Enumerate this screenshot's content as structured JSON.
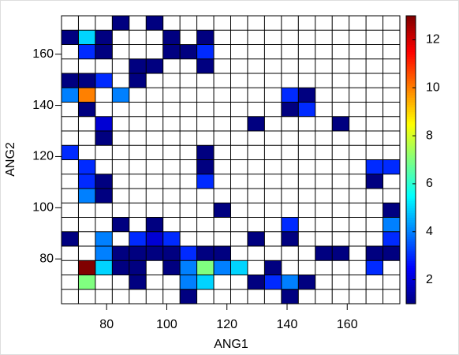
{
  "chart_data": {
    "type": "heatmap",
    "x_label": "ANG1",
    "y_label": "ANG2",
    "xbins": [
      65,
      70.625,
      76.25,
      81.875,
      87.5,
      93.125,
      98.75,
      104.375,
      110,
      115.625,
      121.25,
      126.875,
      132.5,
      138.125,
      143.75,
      149.375,
      155,
      160.625,
      166.25,
      171.875,
      177.5
    ],
    "ybins": [
      62.5,
      68.125,
      73.75,
      79.375,
      85,
      90.625,
      96.25,
      101.875,
      107.5,
      113.125,
      118.75,
      124.375,
      130,
      135.625,
      141.25,
      146.875,
      152.5,
      158.125,
      163.75,
      169.375,
      175
    ],
    "values": [
      [
        null,
        null,
        null,
        null,
        null,
        null,
        null,
        1,
        null,
        null,
        null,
        null,
        null,
        1,
        null,
        null,
        null,
        null,
        null,
        null
      ],
      [
        null,
        7,
        null,
        null,
        1,
        null,
        null,
        4,
        5,
        null,
        null,
        1,
        3,
        4,
        1,
        null,
        null,
        null,
        null,
        null
      ],
      [
        null,
        13,
        5,
        1,
        1,
        null,
        1,
        4,
        7,
        4,
        5,
        null,
        1,
        null,
        null,
        null,
        null,
        null,
        3,
        null
      ],
      [
        null,
        null,
        4,
        1,
        1,
        1,
        1,
        3,
        1,
        1,
        null,
        null,
        null,
        null,
        null,
        1,
        1,
        null,
        1,
        1
      ],
      [
        1,
        null,
        4,
        null,
        3,
        2,
        3,
        null,
        null,
        null,
        null,
        1,
        null,
        1,
        null,
        null,
        null,
        null,
        null,
        3
      ],
      [
        null,
        null,
        null,
        1,
        null,
        1,
        null,
        null,
        null,
        null,
        null,
        null,
        null,
        3,
        null,
        null,
        null,
        null,
        null,
        4
      ],
      [
        null,
        null,
        null,
        null,
        null,
        null,
        null,
        null,
        null,
        1,
        null,
        null,
        null,
        null,
        null,
        null,
        null,
        null,
        null,
        1
      ],
      [
        null,
        4,
        1,
        null,
        null,
        null,
        null,
        null,
        null,
        null,
        null,
        null,
        null,
        null,
        null,
        null,
        null,
        null,
        null,
        null
      ],
      [
        null,
        3,
        1,
        null,
        null,
        null,
        null,
        null,
        3,
        null,
        null,
        null,
        null,
        null,
        null,
        null,
        null,
        null,
        1,
        null
      ],
      [
        null,
        3,
        null,
        null,
        null,
        null,
        null,
        null,
        1,
        null,
        null,
        null,
        null,
        null,
        null,
        null,
        null,
        null,
        3,
        3
      ],
      [
        3,
        null,
        null,
        null,
        null,
        null,
        null,
        null,
        1,
        null,
        null,
        null,
        null,
        null,
        null,
        null,
        null,
        null,
        null,
        null
      ],
      [
        null,
        null,
        1,
        null,
        null,
        null,
        null,
        null,
        null,
        null,
        null,
        null,
        null,
        null,
        null,
        null,
        null,
        null,
        null,
        null
      ],
      [
        null,
        null,
        2,
        null,
        null,
        null,
        null,
        null,
        null,
        null,
        null,
        1,
        null,
        null,
        null,
        null,
        1,
        null,
        null,
        null
      ],
      [
        null,
        1,
        null,
        null,
        null,
        null,
        null,
        null,
        null,
        null,
        null,
        null,
        null,
        1,
        3,
        null,
        null,
        null,
        null,
        null
      ],
      [
        4,
        10,
        null,
        4,
        null,
        null,
        null,
        null,
        null,
        null,
        null,
        null,
        null,
        3,
        1,
        null,
        null,
        null,
        null,
        null
      ],
      [
        1,
        1,
        3,
        null,
        1,
        null,
        null,
        null,
        null,
        null,
        null,
        null,
        null,
        null,
        null,
        null,
        null,
        null,
        null,
        null
      ],
      [
        null,
        null,
        null,
        null,
        1,
        1,
        null,
        null,
        1,
        null,
        null,
        null,
        null,
        null,
        null,
        null,
        null,
        null,
        null,
        null
      ],
      [
        null,
        3,
        1,
        null,
        null,
        null,
        1,
        1,
        3,
        null,
        null,
        null,
        null,
        null,
        null,
        null,
        null,
        null,
        null,
        null
      ],
      [
        1,
        5,
        1,
        null,
        null,
        null,
        1,
        null,
        1,
        null,
        null,
        null,
        null,
        null,
        null,
        null,
        null,
        null,
        null,
        null
      ],
      [
        null,
        null,
        null,
        1,
        null,
        1,
        null,
        null,
        null,
        null,
        null,
        null,
        null,
        null,
        null,
        null,
        null,
        null,
        null,
        null
      ]
    ],
    "xlim": [
      65,
      177.5
    ],
    "ylim": [
      62.5,
      175
    ],
    "xticks": [
      80,
      100,
      120,
      140,
      160
    ],
    "yticks": [
      80,
      100,
      120,
      140,
      160
    ],
    "colormap": "jet",
    "clim": [
      1,
      13
    ],
    "cticks": [
      2,
      4,
      6,
      8,
      10,
      12
    ]
  }
}
